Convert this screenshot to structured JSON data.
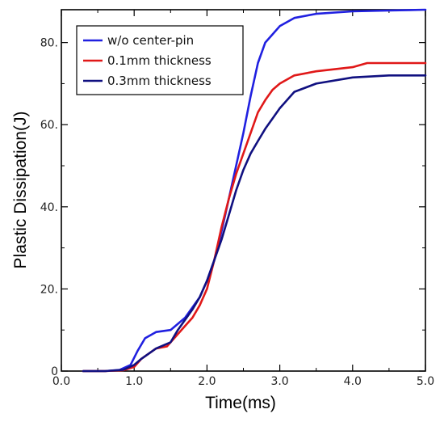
{
  "chart_data": {
    "type": "line",
    "title": "",
    "xlabel": "Time(ms)",
    "ylabel": "Plastic Dissipation(J)",
    "xlim": [
      0,
      5
    ],
    "ylim": [
      0,
      88
    ],
    "x_ticks": [
      0,
      1,
      2,
      3,
      4,
      5
    ],
    "x_tick_labels": [
      "0.0",
      "1.0",
      "2.0",
      "3.0",
      "4.0",
      "5.0"
    ],
    "y_ticks": [
      0,
      20,
      40,
      60,
      80
    ],
    "y_tick_labels": [
      "0",
      "20.",
      "40.",
      "60.",
      "80."
    ],
    "grid": false,
    "legend_position": "top-left",
    "series": [
      {
        "name": "w/o center-pin",
        "color": "#2020e0",
        "points": [
          [
            0.3,
            0
          ],
          [
            0.6,
            0
          ],
          [
            0.8,
            0.3
          ],
          [
            0.95,
            1.5
          ],
          [
            1.05,
            5
          ],
          [
            1.15,
            8
          ],
          [
            1.3,
            9.5
          ],
          [
            1.5,
            10
          ],
          [
            1.7,
            13
          ],
          [
            1.9,
            18
          ],
          [
            2.0,
            22
          ],
          [
            2.1,
            27
          ],
          [
            2.2,
            34
          ],
          [
            2.3,
            42
          ],
          [
            2.4,
            50
          ],
          [
            2.5,
            58
          ],
          [
            2.6,
            67
          ],
          [
            2.7,
            75
          ],
          [
            2.8,
            80
          ],
          [
            2.9,
            82
          ],
          [
            3.0,
            84
          ],
          [
            3.2,
            86
          ],
          [
            3.5,
            87
          ],
          [
            4.0,
            87.6
          ],
          [
            4.5,
            87.8
          ],
          [
            5.0,
            88
          ]
        ]
      },
      {
        "name": "0.1mm thickness",
        "color": "#e01818",
        "points": [
          [
            0.3,
            0
          ],
          [
            0.6,
            0
          ],
          [
            0.85,
            0.2
          ],
          [
            1.0,
            1
          ],
          [
            1.1,
            3
          ],
          [
            1.3,
            5.5
          ],
          [
            1.45,
            6
          ],
          [
            1.55,
            8
          ],
          [
            1.7,
            11
          ],
          [
            1.8,
            13
          ],
          [
            1.9,
            16
          ],
          [
            2.0,
            20
          ],
          [
            2.1,
            27
          ],
          [
            2.2,
            35
          ],
          [
            2.3,
            42
          ],
          [
            2.4,
            48
          ],
          [
            2.5,
            53
          ],
          [
            2.6,
            58
          ],
          [
            2.7,
            63
          ],
          [
            2.8,
            66
          ],
          [
            2.9,
            68.5
          ],
          [
            3.0,
            70
          ],
          [
            3.2,
            72
          ],
          [
            3.5,
            73
          ],
          [
            4.0,
            74
          ],
          [
            4.2,
            75
          ],
          [
            4.5,
            75
          ],
          [
            5.0,
            75
          ]
        ]
      },
      {
        "name": "0.3mm thickness",
        "color": "#101080",
        "points": [
          [
            0.3,
            0
          ],
          [
            0.6,
            0
          ],
          [
            0.85,
            0.3
          ],
          [
            1.0,
            1.5
          ],
          [
            1.1,
            3
          ],
          [
            1.3,
            5.5
          ],
          [
            1.5,
            7
          ],
          [
            1.6,
            10
          ],
          [
            1.8,
            15
          ],
          [
            1.9,
            18
          ],
          [
            2.0,
            22
          ],
          [
            2.1,
            27
          ],
          [
            2.2,
            32
          ],
          [
            2.3,
            38
          ],
          [
            2.4,
            44
          ],
          [
            2.5,
            49
          ],
          [
            2.6,
            53
          ],
          [
            2.7,
            56
          ],
          [
            2.8,
            59
          ],
          [
            2.9,
            61.5
          ],
          [
            3.0,
            64
          ],
          [
            3.1,
            66
          ],
          [
            3.2,
            68
          ],
          [
            3.5,
            70
          ],
          [
            4.0,
            71.5
          ],
          [
            4.5,
            72
          ],
          [
            5.0,
            72
          ]
        ]
      }
    ]
  }
}
